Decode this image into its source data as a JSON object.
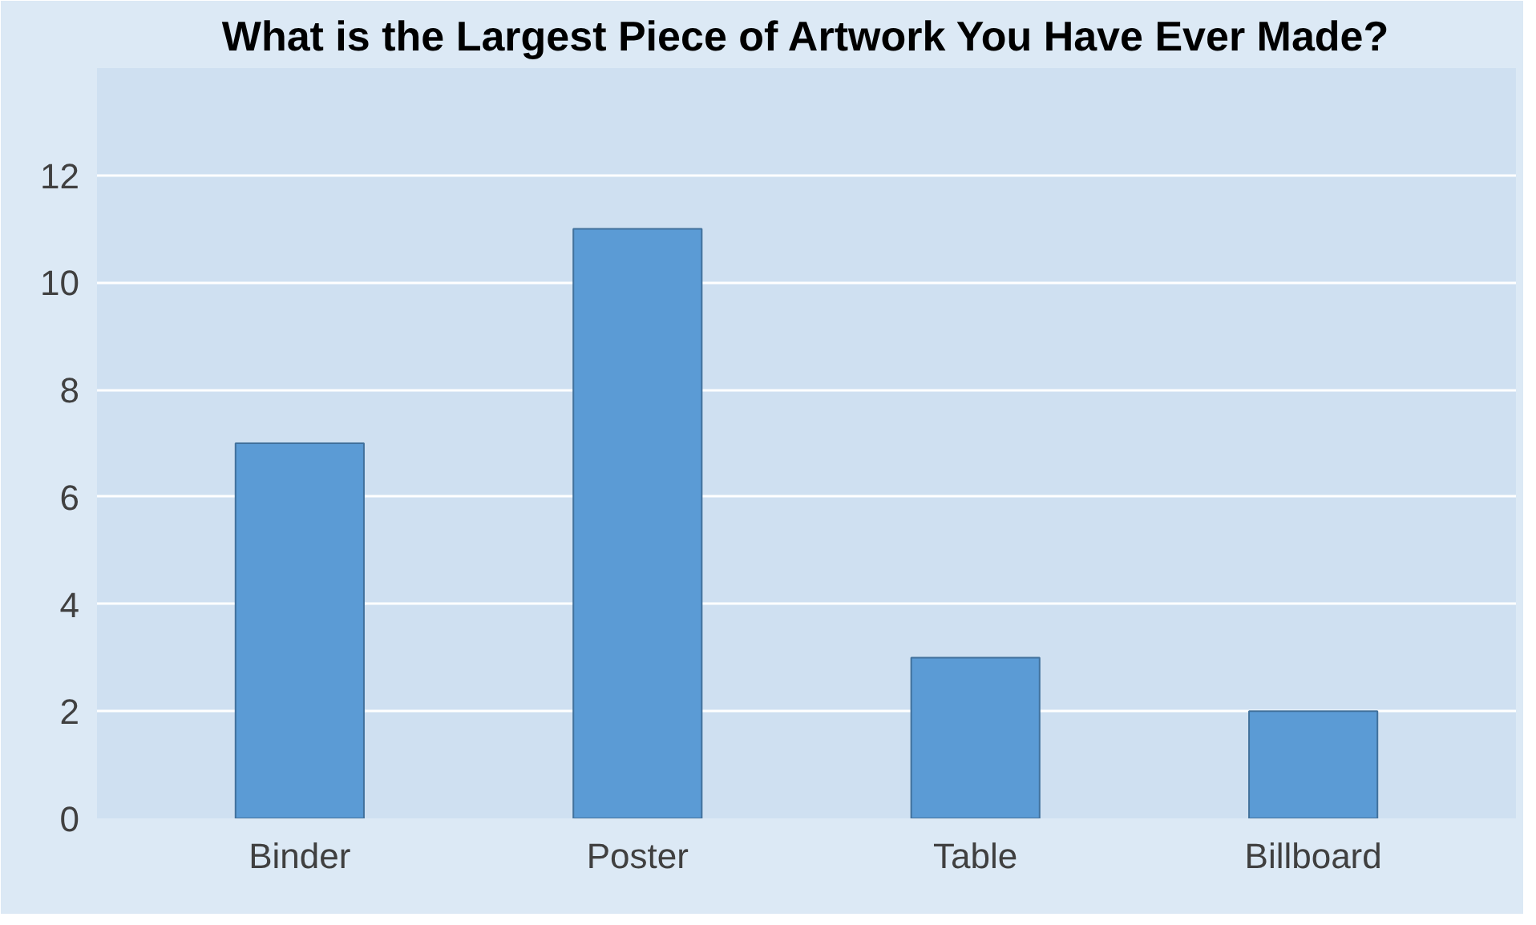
{
  "chart_data": {
    "type": "bar",
    "title": "What is the Largest Piece of Artwork You Have Ever Made?",
    "categories": [
      "Binder",
      "Poster",
      "Table",
      "Billboard"
    ],
    "values": [
      7,
      11,
      3,
      2
    ],
    "color": "#5b9bd5",
    "ylim": [
      0,
      14
    ],
    "yticks": [
      0,
      2,
      4,
      6,
      8,
      10,
      12,
      {
        "value": 14,
        "label": null
      }
    ],
    "grid": "y"
  }
}
